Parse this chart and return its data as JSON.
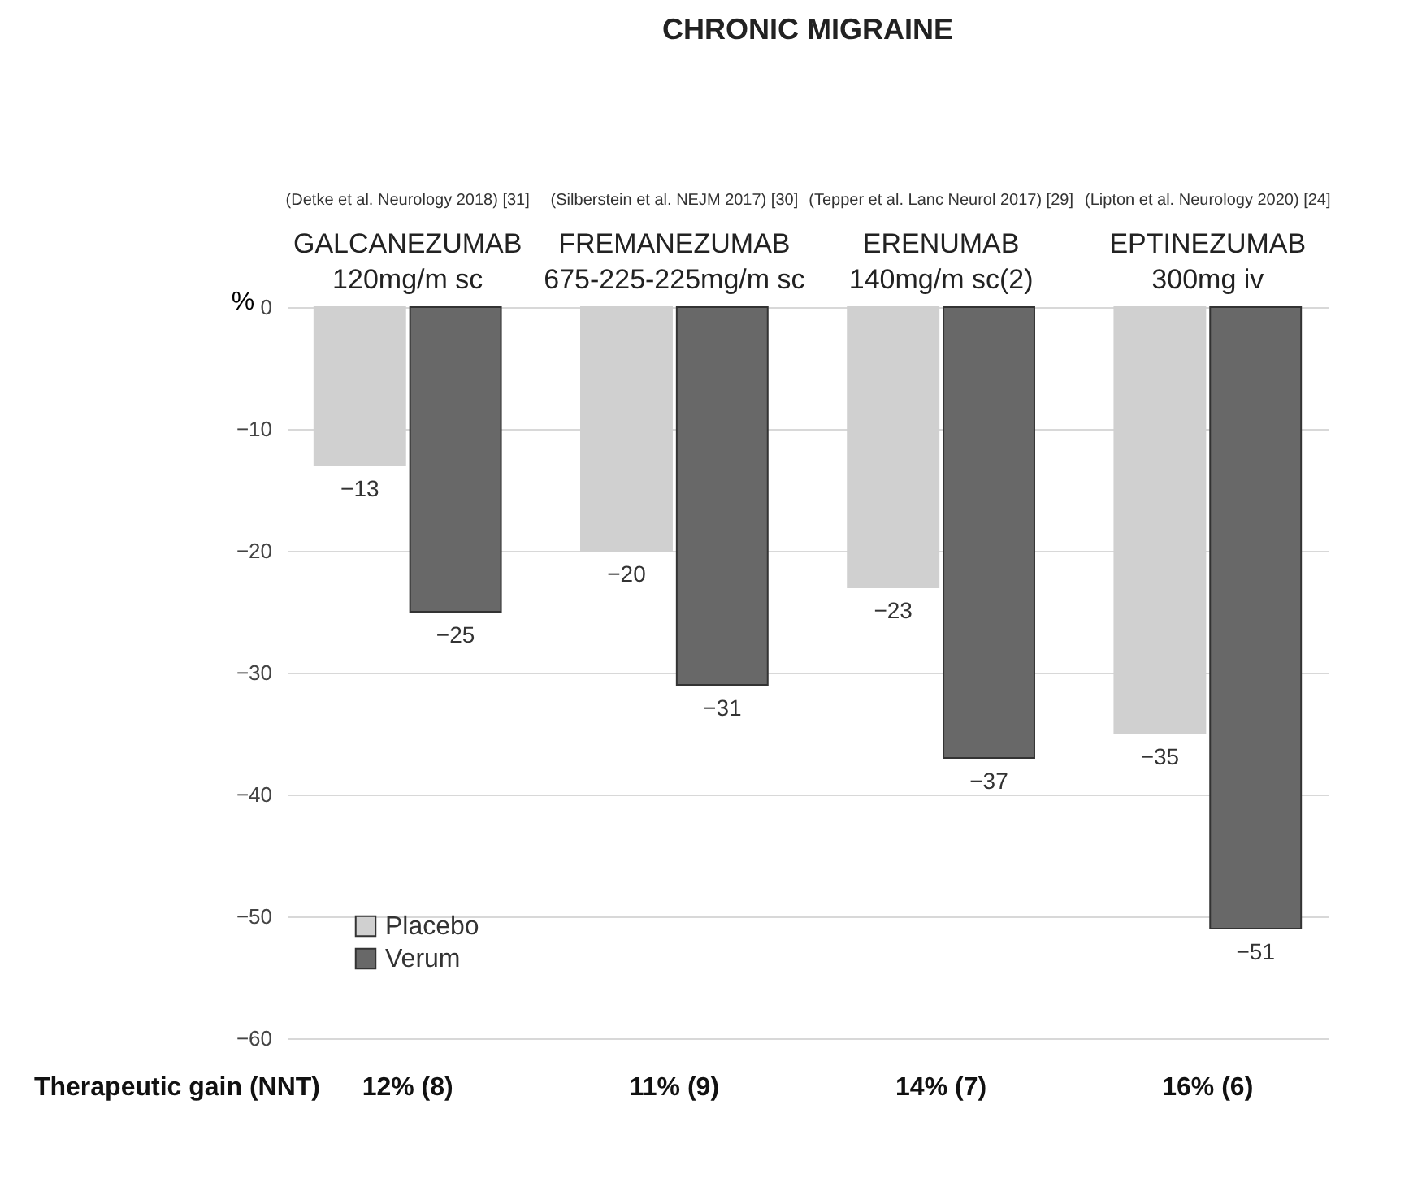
{
  "chart_data": {
    "type": "bar",
    "title": "CHRONIC MIGRAINE",
    "categories": [
      "GALCANEZUMAB\n120mg/m sc",
      "FREMANEZUMAB\n675-225-225mg/m sc",
      "ERENUMAB\n140mg/m sc(2)",
      "EPTINEZUMAB\n300mg iv"
    ],
    "series": [
      {
        "name": "Placebo",
        "color": "#d0d0d0",
        "values": [
          -13,
          -20,
          -23,
          -35
        ]
      },
      {
        "name": "Verum",
        "color": "#686868",
        "values": [
          -25,
          -31,
          -37,
          -51
        ]
      }
    ],
    "ylabel": "%",
    "ylim": [
      -60,
      0
    ],
    "yticks": [
      0,
      -10,
      -20,
      -30,
      -40,
      -50,
      -60
    ],
    "grid": "y",
    "legend": "bottom left",
    "data_labels": true,
    "annotations": [
      "(Detke et al. Neurology 2018) [31]",
      "(Silberstein et al. NEJM 2017) [30]",
      "(Tepper et al. Lanc Neurol 2017) [29]",
      "(Lipton et al. Neurology 2020) [24]",
      "Therapeutic gain (NNT)",
      "12% (8)",
      "11% (9)",
      "14% (7)",
      "16% (6)"
    ]
  }
}
